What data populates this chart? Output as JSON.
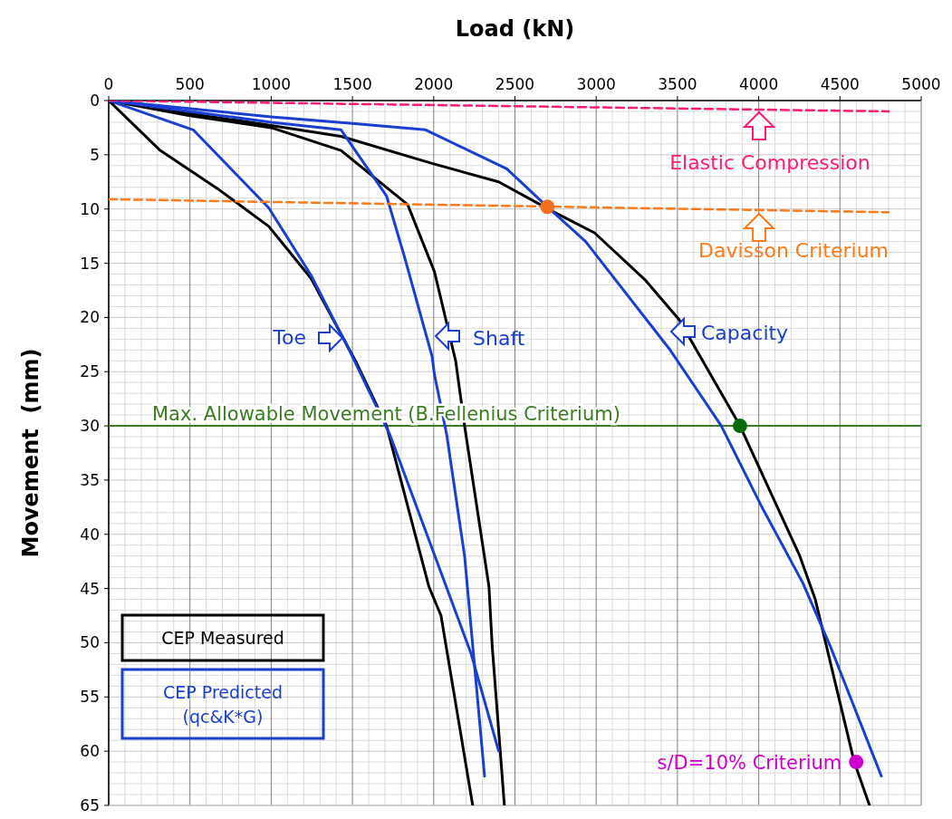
{
  "chart_data": {
    "type": "line",
    "xlabel": "Load (kN)",
    "ylabel": "Movement  (mm)",
    "xlim": [
      0,
      5000
    ],
    "xticks": [
      0,
      500,
      1000,
      1500,
      2000,
      2500,
      3000,
      3500,
      4000,
      4500,
      5000
    ],
    "ylim": [
      65,
      0
    ],
    "yticks": [
      0,
      5,
      10,
      15,
      20,
      25,
      30,
      35,
      40,
      45,
      50,
      55,
      60,
      65
    ],
    "grid": true,
    "legend": "bottom left",
    "series": [
      {
        "name": "CEP Measured",
        "color": "#000000",
        "x": [
          0,
          500,
          1000,
          1430,
          1990,
          2400,
          2730,
          2990,
          3305,
          3510,
          3640,
          3885,
          4253,
          4348,
          4588,
          4682
        ],
        "values": [
          0,
          1.2,
          2.3,
          3.3,
          5.8,
          7.5,
          10.2,
          12.2,
          16.6,
          20.2,
          23.6,
          30,
          42,
          46,
          61,
          65
        ]
      },
      {
        "name": "CEP Predicted (qc&K*G)",
        "color": "#1a3fd0",
        "x": [
          0,
          1000,
          1500,
          1950,
          2450,
          2700,
          2935,
          3455,
          3770,
          4013,
          4272,
          4440,
          4755
        ],
        "values": [
          0,
          1.5,
          2.1,
          2.7,
          6.3,
          9.8,
          13,
          23,
          30,
          37.3,
          44.5,
          50.3,
          62.3
        ]
      },
      {
        "color": "#000000",
        "x": [
          0,
          500,
          1000,
          1430,
          1840,
          2005,
          2135,
          2190,
          2340,
          2360,
          2435
        ],
        "values": [
          0,
          1.4,
          2.5,
          4.6,
          9.6,
          15.8,
          24,
          30,
          44.8,
          50.3,
          65
        ]
      },
      {
        "color": "#1a3fd0",
        "x": [
          0,
          1000,
          1430,
          1710,
          1820,
          1990,
          2005,
          2080,
          2190,
          2313
        ],
        "values": [
          0,
          2,
          2.7,
          8.8,
          14.4,
          23.6,
          25.3,
          30.8,
          42,
          62.3
        ]
      },
      {
        "color": "#000000",
        "x": [
          0,
          317,
          686,
          985,
          1245,
          1522,
          1710,
          1970,
          2045,
          2240
        ],
        "values": [
          0,
          4.6,
          8.3,
          11.6,
          16.4,
          24.1,
          30,
          44.8,
          47.5,
          65
        ]
      },
      {
        "color": "#1a3fd0",
        "x": [
          0,
          520,
          985,
          1245,
          1490,
          1730,
          2230,
          2400
        ],
        "values": [
          0,
          2.7,
          9.9,
          16.1,
          23.3,
          30.8,
          51,
          60
        ]
      },
      {
        "color": "#ff1a75",
        "line_style": "dashed",
        "x": [
          0,
          4800
        ],
        "values": [
          0,
          1
        ]
      },
      {
        "color": "#ff7a1a",
        "line_style": "dashed",
        "x": [
          0,
          4800
        ],
        "values": [
          9.1,
          10.3
        ]
      },
      {
        "type": "scatter",
        "marker": "circle",
        "color": "#f07020",
        "x": [
          2700
        ],
        "values": [
          9.8
        ]
      },
      {
        "type": "scatter",
        "marker": "circle",
        "color": "#0a6b0a",
        "x": [
          3885
        ],
        "values": [
          30
        ]
      },
      {
        "type": "scatter",
        "marker": "circle",
        "name": "s/D=10% Criterium",
        "color": "#cc00cc",
        "x": [
          4600
        ],
        "values": [
          61
        ]
      }
    ],
    "ref_lines": [
      {
        "axis": "y",
        "value": 30,
        "label": "Max. Allowable Movement (B.Fellenius Criterium)",
        "color": "#3a7d22"
      }
    ],
    "annotations": [
      "Toe",
      "Shaft",
      "Capacity",
      "Elastic Compression",
      "Davisson Criterium"
    ]
  }
}
